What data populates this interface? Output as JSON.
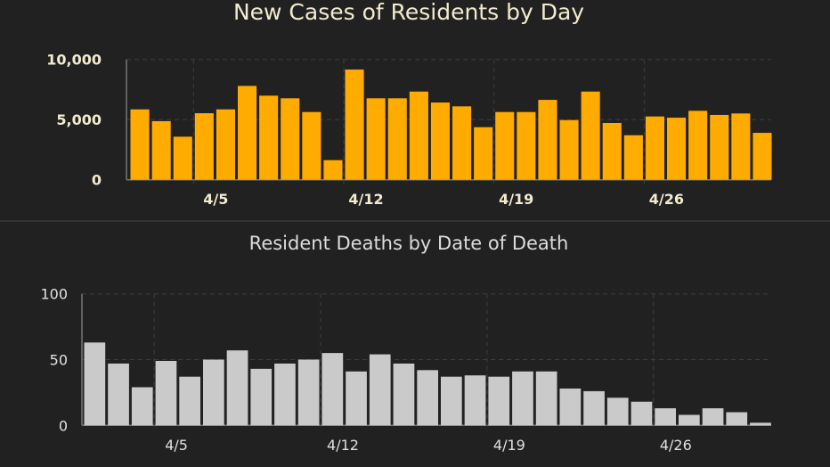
{
  "chart_data": [
    {
      "type": "bar",
      "title": "New Cases of Residents by Day",
      "xlabel": "",
      "ylabel": "",
      "ylim": [
        0,
        10000
      ],
      "yticks": [
        0,
        5000,
        10000
      ],
      "ytick_labels": [
        "0",
        "5,000",
        "10,000"
      ],
      "xtick_labels": [
        "4/5",
        "4/12",
        "4/19",
        "4/26"
      ],
      "xtick_index": [
        3,
        10,
        17,
        24
      ],
      "categories": [
        "4/2",
        "4/3",
        "4/4",
        "4/5",
        "4/6",
        "4/7",
        "4/8",
        "4/9",
        "4/10",
        "4/11",
        "4/12",
        "4/13",
        "4/14",
        "4/15",
        "4/16",
        "4/17",
        "4/18",
        "4/19",
        "4/20",
        "4/21",
        "4/22",
        "4/23",
        "4/24",
        "4/25",
        "4/26",
        "4/27",
        "4/28",
        "4/29",
        "4/30",
        "5/1"
      ],
      "values": [
        5850,
        4870,
        3580,
        5530,
        5850,
        7800,
        6990,
        6770,
        5630,
        1630,
        9160,
        6770,
        6770,
        7330,
        6420,
        6100,
        4370,
        5630,
        5630,
        6640,
        4960,
        7330,
        4720,
        3700,
        5260,
        5160,
        5730,
        5390,
        5510,
        3900
      ],
      "color": "#ffab00",
      "grid": true
    },
    {
      "type": "bar",
      "title": "Resident Deaths by Date of Death",
      "xlabel": "",
      "ylabel": "",
      "ylim": [
        0,
        100
      ],
      "yticks": [
        0,
        50,
        100
      ],
      "ytick_labels": [
        "0",
        "50",
        "100"
      ],
      "xtick_labels": [
        "4/5",
        "4/12",
        "4/19",
        "4/26"
      ],
      "xtick_index": [
        3,
        10,
        17,
        24
      ],
      "categories": [
        "4/2",
        "4/3",
        "4/4",
        "4/5",
        "4/6",
        "4/7",
        "4/8",
        "4/9",
        "4/10",
        "4/11",
        "4/12",
        "4/13",
        "4/14",
        "4/15",
        "4/16",
        "4/17",
        "4/18",
        "4/19",
        "4/20",
        "4/21",
        "4/22",
        "4/23",
        "4/24",
        "4/25",
        "4/26",
        "4/27",
        "4/28",
        "4/29",
        "4/30"
      ],
      "values": [
        63,
        47,
        29,
        49,
        37,
        50,
        57,
        43,
        47,
        50,
        55,
        41,
        54,
        47,
        42,
        37,
        38,
        37,
        41,
        41,
        28,
        26,
        21,
        18,
        13,
        8,
        13,
        10,
        2
      ],
      "color": "#cacaca",
      "grid": true
    }
  ]
}
